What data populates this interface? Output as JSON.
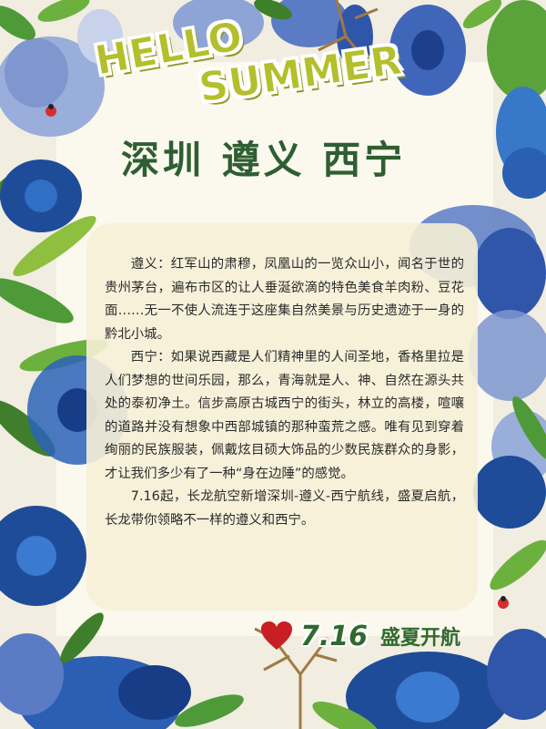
{
  "title": {
    "hello": "HELLO",
    "summer": "SUMMER",
    "cities": "深圳 遵义 西宁"
  },
  "body": {
    "paragraphs": [
      "遵义：红军山的肃穆，凤凰山的一览众山小，闻名于世的贵州茅台，遍布市区的让人垂涎欲滴的特色美食羊肉粉、豆花面……无一不使人流连于这座集自然美景与历史遗迹于一身的黔北小城。",
      "西宁：如果说西藏是人们精神里的人间圣地，香格里拉是人们梦想的世间乐园，那么，青海就是人、神、自然在源头共处的泰初净土。信步高原古城西宁的街头，林立的高楼，喧嚷的道路并没有想象中西部城镇的那种蛮荒之感。唯有见到穿着绚丽的民族服装，佩戴炫目硕大饰品的少数民族群众的身影，才让我们多少有了一种“身在边陲”的感觉。",
      "7.16起，长龙航空新增深圳-遵义-西宁航线，盛夏启航，长龙带你领略不一样的遵义和西宁。"
    ]
  },
  "footer": {
    "icon": "heart-icon",
    "date": "7.16",
    "slogan": "盛夏开航"
  },
  "colors": {
    "title_green": "#2e5e32",
    "hello_yellow": "#b4bf2c",
    "heart_red": "#c81e24",
    "leaf_blue": "#2f56a8",
    "leaf_green": "#4c8a32"
  }
}
